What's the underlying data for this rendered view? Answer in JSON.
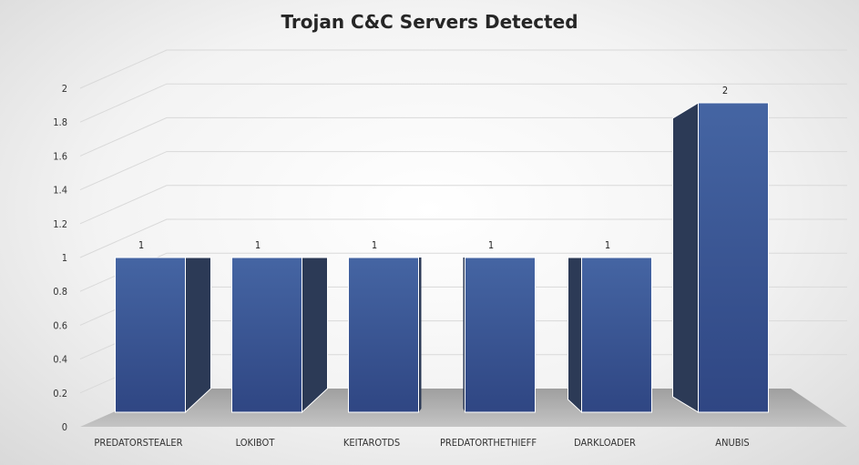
{
  "chart_data": {
    "type": "bar",
    "title": "Trojan C&C Servers Detected",
    "categories": [
      "PREDATORSTEALER",
      "LOKIBOT",
      "KEITAROTDS",
      "PREDATORTHETHIEFF",
      "DARKLOADER",
      "ANUBIS"
    ],
    "values": [
      1,
      1,
      1,
      1,
      1,
      2
    ],
    "data_labels": [
      "1",
      "1",
      "1",
      "1",
      "1",
      "2"
    ],
    "ylim": [
      0,
      2
    ],
    "yticks": [
      "0",
      "0.2",
      "0.4",
      "0.6",
      "0.8",
      "1",
      "1.2",
      "1.4",
      "1.6",
      "1.8",
      "2"
    ],
    "xlabel": "",
    "ylabel": "",
    "grid": true,
    "legend": "none",
    "style": "3d-column",
    "colors": {
      "bar_front": "#3a5493",
      "bar_side": "#2c3a56",
      "floor": "#a6a6a6",
      "gridline": "#d9d9d9"
    }
  }
}
